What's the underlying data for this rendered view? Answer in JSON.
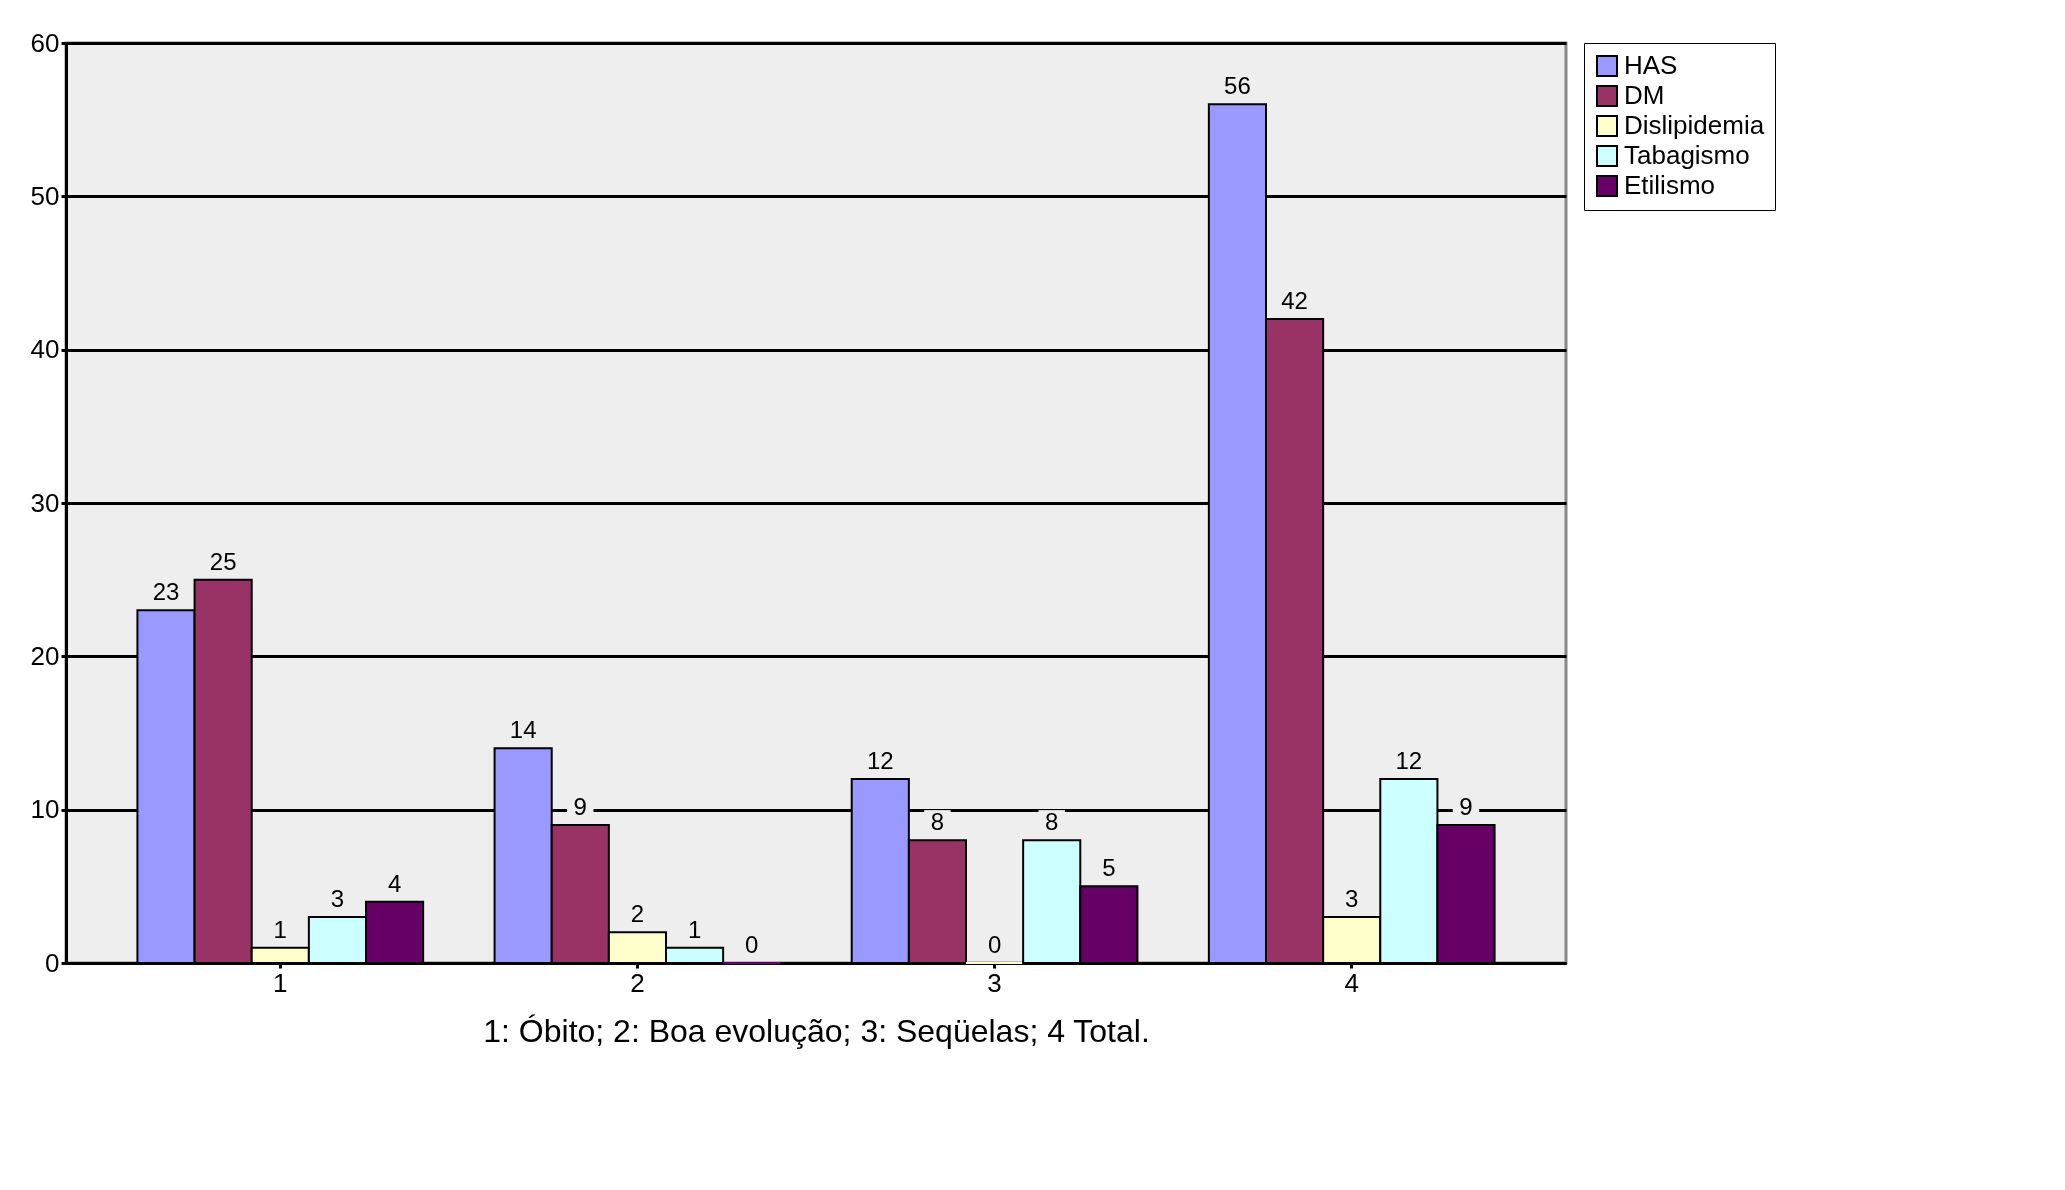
{
  "chart_data": {
    "type": "bar",
    "xlabel": "1: Óbito; 2: Boa evolução; 3: Seqüelas; 4 Total.",
    "categories": [
      "1",
      "2",
      "3",
      "4"
    ],
    "series": [
      {
        "name": "HAS",
        "color": "#9999ff",
        "values": [
          23,
          14,
          12,
          56
        ]
      },
      {
        "name": "DM",
        "color": "#993366",
        "values": [
          25,
          9,
          8,
          42
        ]
      },
      {
        "name": "Dislipidemia",
        "color": "#ffffcc",
        "values": [
          1,
          2,
          0,
          3
        ]
      },
      {
        "name": "Tabagismo",
        "color": "#ccffff",
        "values": [
          3,
          1,
          8,
          12
        ]
      },
      {
        "name": "Etilismo",
        "color": "#660066",
        "values": [
          4,
          0,
          5,
          9
        ]
      }
    ],
    "ylim": [
      0,
      60
    ],
    "yticks": [
      0,
      10,
      20,
      30,
      40,
      50,
      60
    ],
    "grid": "y",
    "legend": "right",
    "data_labels": true
  }
}
